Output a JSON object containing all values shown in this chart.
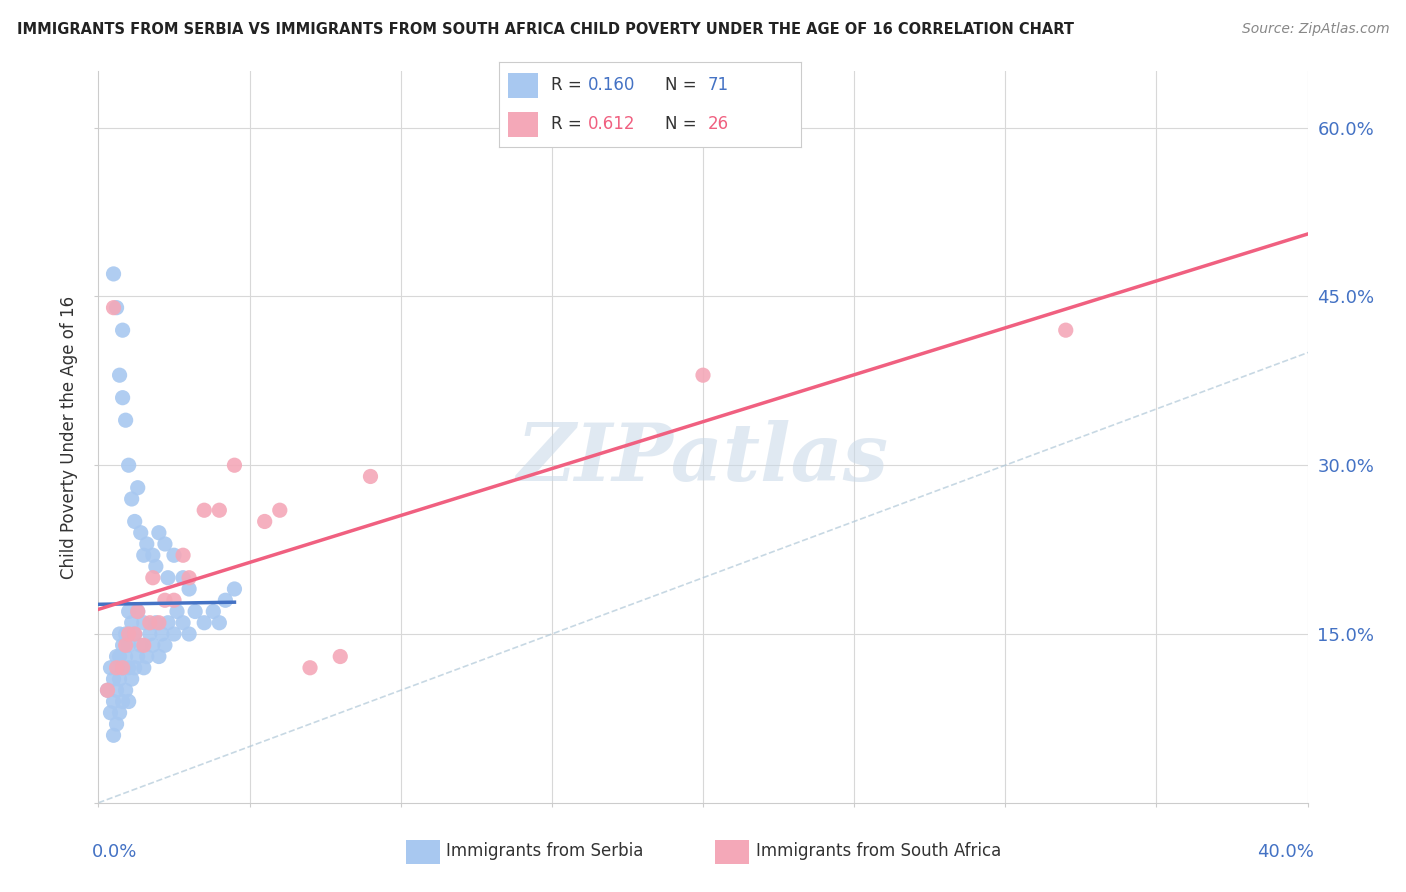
{
  "title": "IMMIGRANTS FROM SERBIA VS IMMIGRANTS FROM SOUTH AFRICA CHILD POVERTY UNDER THE AGE OF 16 CORRELATION CHART",
  "source": "Source: ZipAtlas.com",
  "ylabel": "Child Poverty Under the Age of 16",
  "xlim": [
    0,
    0.4
  ],
  "ylim": [
    0,
    0.65
  ],
  "serbia_R": "0.160",
  "serbia_N": "71",
  "south_africa_R": "0.612",
  "south_africa_N": "26",
  "serbia_color": "#a8c8f0",
  "south_africa_color": "#f4a8b8",
  "serbia_line_color": "#4472c4",
  "south_africa_line_color": "#f06080",
  "diagonal_color": "#b0c8d8",
  "watermark": "ZIPatlas",
  "serbia_x": [
    0.003,
    0.004,
    0.004,
    0.005,
    0.005,
    0.005,
    0.006,
    0.006,
    0.006,
    0.007,
    0.007,
    0.007,
    0.007,
    0.008,
    0.008,
    0.008,
    0.009,
    0.009,
    0.009,
    0.01,
    0.01,
    0.01,
    0.01,
    0.011,
    0.011,
    0.012,
    0.012,
    0.013,
    0.013,
    0.014,
    0.015,
    0.015,
    0.016,
    0.017,
    0.018,
    0.019,
    0.02,
    0.021,
    0.022,
    0.023,
    0.025,
    0.026,
    0.028,
    0.03,
    0.032,
    0.035,
    0.038,
    0.04,
    0.042,
    0.045,
    0.005,
    0.006,
    0.007,
    0.008,
    0.008,
    0.009,
    0.01,
    0.011,
    0.012,
    0.013,
    0.014,
    0.015,
    0.016,
    0.018,
    0.019,
    0.02,
    0.022,
    0.023,
    0.025,
    0.028,
    0.03
  ],
  "serbia_y": [
    0.1,
    0.08,
    0.12,
    0.06,
    0.09,
    0.11,
    0.07,
    0.1,
    0.13,
    0.08,
    0.11,
    0.13,
    0.15,
    0.09,
    0.12,
    0.14,
    0.1,
    0.13,
    0.15,
    0.09,
    0.12,
    0.14,
    0.17,
    0.11,
    0.16,
    0.12,
    0.15,
    0.13,
    0.17,
    0.14,
    0.12,
    0.16,
    0.13,
    0.15,
    0.14,
    0.16,
    0.13,
    0.15,
    0.14,
    0.16,
    0.15,
    0.17,
    0.16,
    0.15,
    0.17,
    0.16,
    0.17,
    0.16,
    0.18,
    0.19,
    0.47,
    0.44,
    0.38,
    0.42,
    0.36,
    0.34,
    0.3,
    0.27,
    0.25,
    0.28,
    0.24,
    0.22,
    0.23,
    0.22,
    0.21,
    0.24,
    0.23,
    0.2,
    0.22,
    0.2,
    0.19
  ],
  "south_africa_x": [
    0.003,
    0.005,
    0.006,
    0.008,
    0.009,
    0.01,
    0.012,
    0.013,
    0.015,
    0.017,
    0.018,
    0.02,
    0.022,
    0.025,
    0.028,
    0.03,
    0.035,
    0.04,
    0.045,
    0.055,
    0.06,
    0.07,
    0.08,
    0.09,
    0.2,
    0.32
  ],
  "south_africa_y": [
    0.1,
    0.44,
    0.12,
    0.12,
    0.14,
    0.15,
    0.15,
    0.17,
    0.14,
    0.16,
    0.2,
    0.16,
    0.18,
    0.18,
    0.22,
    0.2,
    0.26,
    0.26,
    0.3,
    0.25,
    0.26,
    0.12,
    0.13,
    0.29,
    0.38,
    0.42
  ]
}
